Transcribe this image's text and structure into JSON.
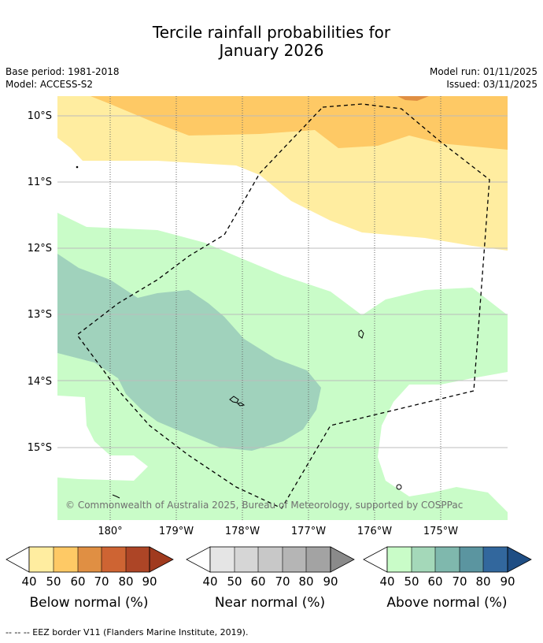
{
  "title": {
    "line1": "Tercile rainfall probabilities for",
    "line2": "January 2026"
  },
  "meta": {
    "base_period": "Base period: 1981-2018",
    "model": "Model: ACCESS-S2",
    "model_run": "Model run: 01/11/2025",
    "issued": "Issued: 03/11/2025"
  },
  "map": {
    "lat_labels": [
      "10°S",
      "11°S",
      "12°S",
      "13°S",
      "14°S",
      "15°S"
    ],
    "lon_labels": [
      "180°",
      "179°W",
      "178°W",
      "177°W",
      "176°W",
      "175°W"
    ],
    "copyright": "© Commonwealth of Australia 2025, Bureau of Meteorology, supported by COSPPac"
  },
  "legend": {
    "ticks": [
      "40",
      "50",
      "60",
      "70",
      "80",
      "90"
    ],
    "below": {
      "label": "Below normal (%)",
      "colors": [
        "#ffeda0",
        "#fec965",
        "#e08f43",
        "#ce6433",
        "#ad4526",
        "#a03a1e"
      ]
    },
    "near": {
      "label": "Near normal (%)",
      "colors": [
        "#e5e5e5",
        "#d6d6d6",
        "#c8c8c8",
        "#b5b5b5",
        "#a3a3a3",
        "#8a8a8a"
      ]
    },
    "above": {
      "label": "Above normal (%)",
      "colors": [
        "#c9fcc8",
        "#a4d8b9",
        "#7fb8ad",
        "#5b95a0",
        "#32679d",
        "#1f4e84"
      ]
    }
  },
  "footer": {
    "eez_note": "--  --  -- EEZ border V11 (Flanders Marine Institute, 2019)."
  }
}
